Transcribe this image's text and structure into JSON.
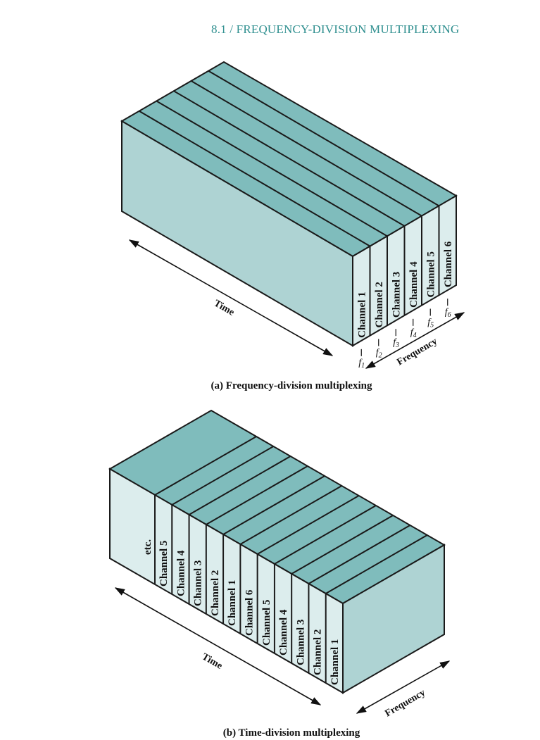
{
  "header": {
    "title": "8.1 / FREQUENCY-DIVISION MULTIPLEXING"
  },
  "colors": {
    "top": "#7fbcbc",
    "front_face": "#aed3d3",
    "slice_face": "#dceded",
    "outline": "#1a1a1a"
  },
  "fdm": {
    "caption": "(a) Frequency-division multiplexing",
    "time_label": "Time",
    "frequency_label": "Frequency",
    "channels": [
      "Channel 1",
      "Channel 2",
      "Channel 3",
      "Channel 4",
      "Channel 5",
      "Channel 6"
    ],
    "freq_ticks": [
      {
        "base": "f",
        "sub": "1"
      },
      {
        "base": "f",
        "sub": "2"
      },
      {
        "base": "f",
        "sub": "3"
      },
      {
        "base": "f",
        "sub": "4"
      },
      {
        "base": "f",
        "sub": "5"
      },
      {
        "base": "f",
        "sub": "6"
      }
    ]
  },
  "tdm": {
    "caption": "(b) Time-division multiplexing",
    "time_label": "Time",
    "frequency_label": "Frequency",
    "etc_label": "etc.",
    "channels": [
      "Channel 5",
      "Channel 4",
      "Channel 3",
      "Channel 2",
      "Channel 1",
      "Channel 6",
      "Channel 5",
      "Channel 4",
      "Channel 3",
      "Channel 2",
      "Channel 1"
    ]
  }
}
